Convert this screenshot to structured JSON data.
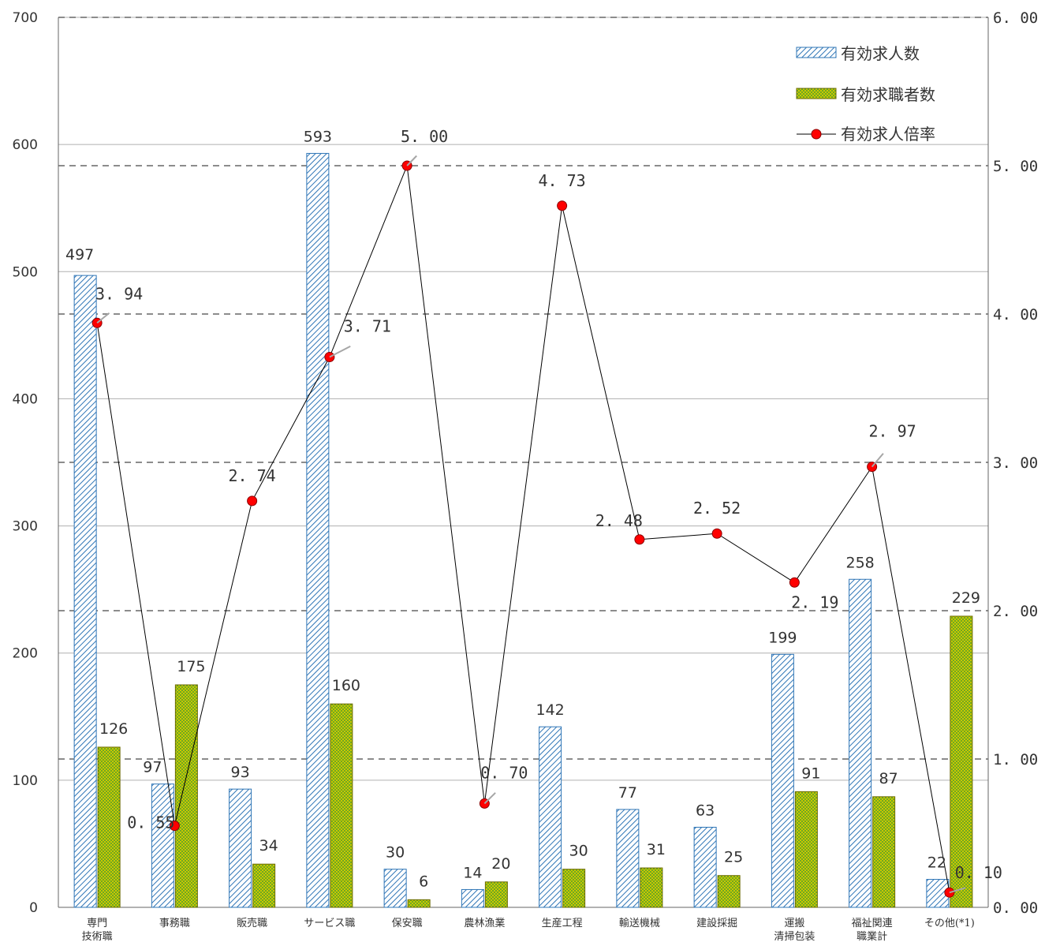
{
  "chart_data": {
    "type": "bar",
    "categories": [
      [
        "専門",
        "技術職"
      ],
      [
        "事務職"
      ],
      [
        "販売職"
      ],
      [
        "サービス職"
      ],
      [
        "保安職"
      ],
      [
        "農林漁業"
      ],
      [
        "生産工程"
      ],
      [
        "輸送機械"
      ],
      [
        "建設採掘"
      ],
      [
        "運搬",
        "清掃包装"
      ],
      [
        "福祉関連",
        "職業計"
      ],
      [
        "その他(*1)"
      ]
    ],
    "series": [
      {
        "name": "有効求人数",
        "type": "bar",
        "axis": "left",
        "pattern": "hatch",
        "color": "#2e75b6",
        "values": [
          497,
          97,
          93,
          593,
          30,
          14,
          142,
          77,
          63,
          199,
          258,
          22
        ],
        "labels": [
          "497",
          "97",
          "93",
          "593",
          "30",
          "14",
          "142",
          "77",
          "63",
          "199",
          "258",
          "22"
        ]
      },
      {
        "name": "有効求職者数",
        "type": "bar",
        "axis": "right_bar",
        "pattern": "dots",
        "color": "#b4b400",
        "values": [
          126,
          175,
          34,
          160,
          6,
          20,
          30,
          31,
          25,
          91,
          87,
          229
        ],
        "labels": [
          "126",
          "175",
          "34",
          "160",
          "6",
          "20",
          "30",
          "31",
          "25",
          "91",
          "87",
          "229"
        ]
      },
      {
        "name": "有効求人倍率",
        "type": "line",
        "axis": "right",
        "color": "#ff0000",
        "values": [
          3.94,
          0.55,
          2.74,
          3.71,
          5.0,
          0.7,
          4.73,
          2.48,
          2.52,
          2.19,
          2.97,
          0.1
        ],
        "labels": [
          "3. 94",
          "0. 55",
          "2. 74",
          "3. 71",
          "5. 00",
          "0. 70",
          "4. 73",
          "2. 48",
          "2. 52",
          "2. 19",
          "2. 97",
          "0. 10"
        ]
      }
    ],
    "y_left": {
      "min": 0,
      "max": 700,
      "ticks": [
        "0",
        "100",
        "200",
        "300",
        "400",
        "500",
        "600",
        "700"
      ]
    },
    "y_right": {
      "min": 0,
      "max": 6,
      "ticks": [
        "0. 00",
        "1. 00",
        "2. 00",
        "3. 00",
        "4. 00",
        "5. 00",
        "6. 00"
      ]
    },
    "grid": true,
    "legend": "top-right"
  }
}
